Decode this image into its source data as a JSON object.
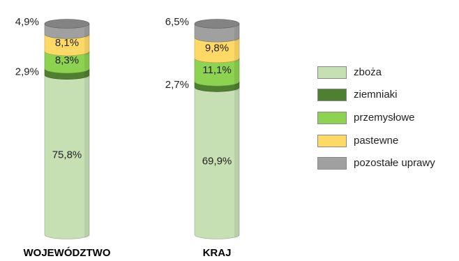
{
  "chart_data": {
    "type": "stacked-bar",
    "categories": [
      "WOJEWÓDZTWO",
      "KRAJ"
    ],
    "series": [
      {
        "name": "zboża",
        "color": "#c6e0b4",
        "values": [
          75.8,
          69.9
        ],
        "labels": [
          "75,8%",
          "69,9%"
        ]
      },
      {
        "name": "ziemniaki",
        "color": "#4f7f31",
        "values": [
          2.9,
          2.7
        ],
        "labels": [
          "2,9%",
          "2,7%"
        ]
      },
      {
        "name": "przemysłowe",
        "color": "#8dd250",
        "values": [
          8.3,
          11.1
        ],
        "labels": [
          "8,3%",
          "11,1%"
        ]
      },
      {
        "name": "pastewne",
        "color": "#ffd966",
        "values": [
          8.1,
          9.8
        ],
        "labels": [
          "8,1%",
          "9,8%"
        ]
      },
      {
        "name": "pozostałe uprawy",
        "color": "#a0a0a0",
        "values": [
          4.9,
          6.5
        ],
        "labels": [
          "4,9%",
          "6,5%"
        ]
      }
    ],
    "ylim": [
      0,
      100
    ],
    "legend_position": "right"
  }
}
